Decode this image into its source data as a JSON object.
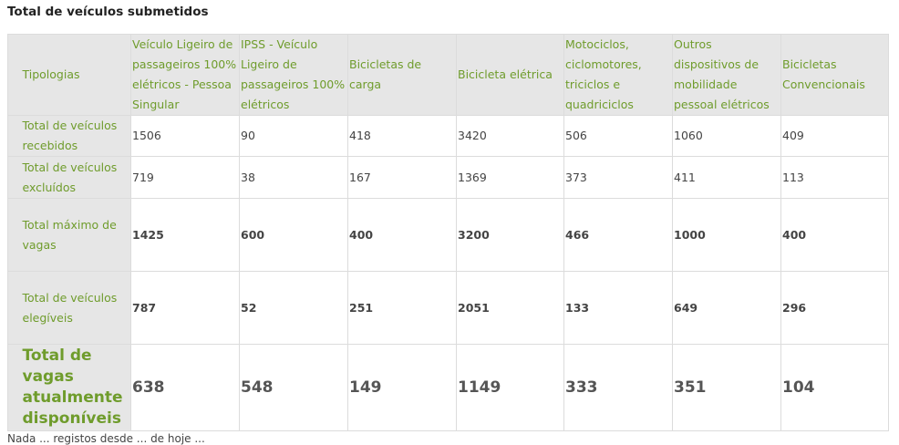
{
  "title": "Total de veículos submetidos",
  "headers": [
    "Tipologias",
    "Veículo Ligeiro de passageiros 100% elétricos - Pessoa Singular",
    "IPSS - Veículo Ligeiro de passageiros 100% elétricos",
    "Bicicletas de carga",
    "Bicicleta elétrica",
    "Motociclos, ciclomotores, triciclos e quadriciclos",
    "Outros dispositivos de mobilidade pessoal elétricos",
    "Bicicletas Convencionais"
  ],
  "rows": [
    {
      "label": "Total de veículos recebidos",
      "values": [
        "1506",
        "90",
        "418",
        "3420",
        "506",
        "1060",
        "409"
      ]
    },
    {
      "label": "Total de veículos excluídos",
      "values": [
        "719",
        "38",
        "167",
        "1369",
        "373",
        "411",
        "113"
      ]
    },
    {
      "label": "Total máximo de vagas",
      "values": [
        "1425",
        "600",
        "400",
        "3200",
        "466",
        "1000",
        "400"
      ]
    },
    {
      "label": "Total de veículos elegíveis",
      "values": [
        "787",
        "52",
        "251",
        "2051",
        "133",
        "649",
        "296"
      ]
    },
    {
      "label": "Total de vagas atualmente disponíveis",
      "values": [
        "638",
        "548",
        "149",
        "1149",
        "333",
        "351",
        "104"
      ]
    }
  ],
  "footer": "Nada ... registos desde ... de hoje ..."
}
